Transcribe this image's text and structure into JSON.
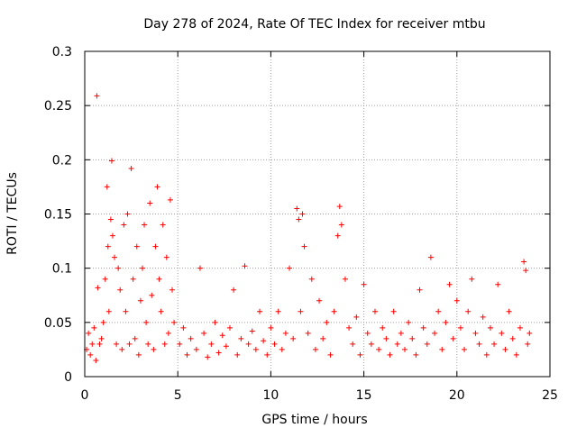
{
  "chart_data": {
    "type": "scatter",
    "title": "Day 278 of 2024, Rate Of TEC Index for receiver mtbu",
    "xlabel": "GPS time / hours",
    "ylabel": "ROTI / TECUs",
    "xlim": [
      0,
      25
    ],
    "ylim": [
      0,
      0.3
    ],
    "x_ticks": [
      0,
      5,
      10,
      15,
      20,
      25
    ],
    "x_tick_labels": [
      "0",
      "5",
      "10",
      "15",
      "20",
      "25"
    ],
    "y_ticks": [
      0,
      0.05,
      0.1,
      0.15,
      0.2,
      0.25,
      0.3
    ],
    "y_tick_labels": [
      "0",
      "0.05",
      "0.1",
      "0.15",
      "0.2",
      "0.25",
      "0.3"
    ],
    "grid": true,
    "legend": "none",
    "marker": "+",
    "color": "#ff0000",
    "series": [
      {
        "points": [
          [
            0.1,
            0.025
          ],
          [
            0.2,
            0.04
          ],
          [
            0.3,
            0.02
          ],
          [
            0.4,
            0.03
          ],
          [
            0.5,
            0.045
          ],
          [
            0.6,
            0.015
          ],
          [
            0.7,
            0.082
          ],
          [
            0.8,
            0.03
          ],
          [
            0.9,
            0.035
          ],
          [
            1.0,
            0.05
          ],
          [
            1.1,
            0.09
          ],
          [
            1.2,
            0.175
          ],
          [
            1.25,
            0.12
          ],
          [
            1.3,
            0.06
          ],
          [
            1.4,
            0.145
          ],
          [
            1.45,
            0.199
          ],
          [
            1.5,
            0.13
          ],
          [
            1.6,
            0.11
          ],
          [
            1.7,
            0.03
          ],
          [
            1.8,
            0.1
          ],
          [
            1.9,
            0.08
          ],
          [
            2.0,
            0.025
          ],
          [
            2.1,
            0.14
          ],
          [
            2.2,
            0.06
          ],
          [
            2.3,
            0.15
          ],
          [
            2.4,
            0.03
          ],
          [
            2.5,
            0.192
          ],
          [
            2.6,
            0.09
          ],
          [
            2.7,
            0.035
          ],
          [
            2.8,
            0.12
          ],
          [
            2.9,
            0.02
          ],
          [
            3.0,
            0.07
          ],
          [
            3.1,
            0.1
          ],
          [
            3.2,
            0.14
          ],
          [
            3.3,
            0.05
          ],
          [
            3.4,
            0.03
          ],
          [
            3.5,
            0.16
          ],
          [
            3.6,
            0.075
          ],
          [
            3.7,
            0.025
          ],
          [
            3.8,
            0.12
          ],
          [
            3.9,
            0.175
          ],
          [
            4.0,
            0.09
          ],
          [
            4.1,
            0.06
          ],
          [
            4.2,
            0.14
          ],
          [
            4.3,
            0.03
          ],
          [
            4.4,
            0.11
          ],
          [
            4.5,
            0.04
          ],
          [
            4.6,
            0.163
          ],
          [
            4.7,
            0.08
          ],
          [
            4.8,
            0.05
          ],
          [
            0.65,
            0.259
          ],
          [
            5.1,
            0.03
          ],
          [
            5.3,
            0.045
          ],
          [
            5.5,
            0.02
          ],
          [
            5.7,
            0.035
          ],
          [
            6.0,
            0.025
          ],
          [
            6.2,
            0.1
          ],
          [
            6.4,
            0.04
          ],
          [
            6.6,
            0.018
          ],
          [
            6.8,
            0.03
          ],
          [
            7.0,
            0.05
          ],
          [
            7.2,
            0.022
          ],
          [
            7.4,
            0.038
          ],
          [
            7.6,
            0.028
          ],
          [
            7.8,
            0.045
          ],
          [
            8.0,
            0.08
          ],
          [
            8.2,
            0.02
          ],
          [
            8.4,
            0.035
          ],
          [
            8.6,
            0.102
          ],
          [
            8.8,
            0.03
          ],
          [
            9.0,
            0.042
          ],
          [
            9.2,
            0.025
          ],
          [
            9.4,
            0.06
          ],
          [
            9.6,
            0.033
          ],
          [
            9.8,
            0.02
          ],
          [
            10.0,
            0.045
          ],
          [
            10.2,
            0.03
          ],
          [
            10.4,
            0.06
          ],
          [
            10.6,
            0.025
          ],
          [
            10.8,
            0.04
          ],
          [
            11.0,
            0.1
          ],
          [
            11.2,
            0.035
          ],
          [
            11.4,
            0.155
          ],
          [
            11.5,
            0.145
          ],
          [
            11.6,
            0.06
          ],
          [
            11.7,
            0.15
          ],
          [
            11.8,
            0.12
          ],
          [
            12.0,
            0.04
          ],
          [
            12.2,
            0.09
          ],
          [
            12.4,
            0.025
          ],
          [
            12.6,
            0.07
          ],
          [
            12.8,
            0.035
          ],
          [
            13.0,
            0.05
          ],
          [
            13.2,
            0.02
          ],
          [
            13.4,
            0.06
          ],
          [
            13.6,
            0.13
          ],
          [
            13.7,
            0.157
          ],
          [
            13.8,
            0.14
          ],
          [
            14.0,
            0.09
          ],
          [
            14.2,
            0.045
          ],
          [
            14.4,
            0.03
          ],
          [
            14.6,
            0.055
          ],
          [
            14.8,
            0.02
          ],
          [
            15.0,
            0.085
          ],
          [
            15.2,
            0.04
          ],
          [
            15.4,
            0.03
          ],
          [
            15.6,
            0.06
          ],
          [
            15.8,
            0.025
          ],
          [
            16.0,
            0.045
          ],
          [
            16.2,
            0.035
          ],
          [
            16.4,
            0.02
          ],
          [
            16.6,
            0.06
          ],
          [
            16.8,
            0.03
          ],
          [
            17.0,
            0.04
          ],
          [
            17.2,
            0.025
          ],
          [
            17.4,
            0.05
          ],
          [
            17.6,
            0.035
          ],
          [
            17.8,
            0.02
          ],
          [
            18.0,
            0.08
          ],
          [
            18.2,
            0.045
          ],
          [
            18.4,
            0.03
          ],
          [
            18.6,
            0.11
          ],
          [
            18.8,
            0.04
          ],
          [
            19.0,
            0.06
          ],
          [
            19.2,
            0.025
          ],
          [
            19.4,
            0.05
          ],
          [
            19.6,
            0.085
          ],
          [
            19.8,
            0.035
          ],
          [
            20.0,
            0.07
          ],
          [
            20.2,
            0.045
          ],
          [
            20.4,
            0.025
          ],
          [
            20.6,
            0.06
          ],
          [
            20.8,
            0.09
          ],
          [
            21.0,
            0.04
          ],
          [
            21.2,
            0.03
          ],
          [
            21.4,
            0.055
          ],
          [
            21.6,
            0.02
          ],
          [
            21.8,
            0.045
          ],
          [
            22.0,
            0.03
          ],
          [
            22.2,
            0.085
          ],
          [
            22.4,
            0.04
          ],
          [
            22.6,
            0.025
          ],
          [
            22.8,
            0.06
          ],
          [
            23.0,
            0.035
          ],
          [
            23.2,
            0.02
          ],
          [
            23.4,
            0.045
          ],
          [
            23.6,
            0.106
          ],
          [
            23.7,
            0.098
          ],
          [
            23.8,
            0.03
          ],
          [
            23.9,
            0.04
          ]
        ]
      }
    ]
  }
}
